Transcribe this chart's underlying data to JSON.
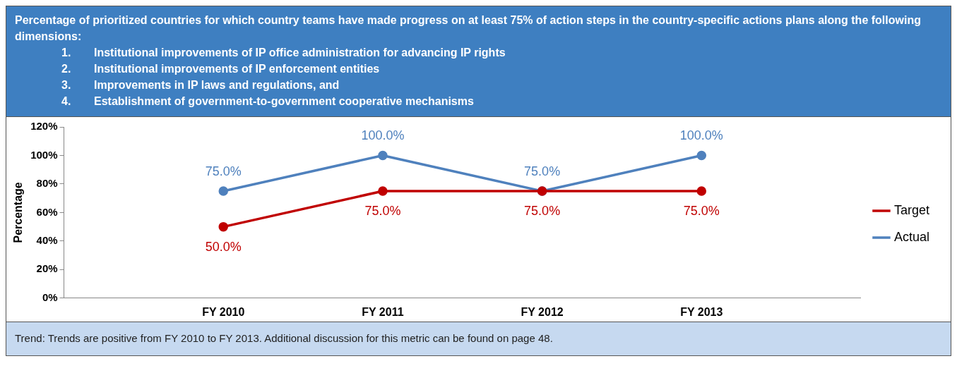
{
  "chart_data": {
    "type": "line",
    "title": "Percentage of prioritized countries for which country teams have made progress on at least 75% of action steps in the country-specific actions plans along the following dimensions:",
    "annotations": [
      "1.\tInstitutional improvements of IP office administration for advancing IP rights",
      "2.\tInstitutional improvements of IP enforcement entities",
      "3.\tImprovements in IP laws and regulations, and",
      "4.\tEstablishment of government-to-government cooperative mechanisms",
      "Trend:  Trends are positive from FY 2010 to FY 2013.  Additional discussion for this metric can be found on page 48."
    ],
    "ylabel": "Percentage",
    "categories": [
      "FY 2010",
      "FY 2011",
      "FY 2012",
      "FY 2013"
    ],
    "series": [
      {
        "name": "Target",
        "color": "#c00000",
        "values": [
          50,
          75,
          75,
          75
        ],
        "value_labels": [
          "50.0%",
          "75.0%",
          "75.0%",
          "75.0%"
        ]
      },
      {
        "name": "Actual",
        "color": "#4f81bd",
        "values": [
          75,
          100,
          75,
          100
        ],
        "value_labels": [
          "75.0%",
          "100.0%",
          "75.0%",
          "100.0%"
        ]
      }
    ],
    "ylim": [
      0,
      120
    ],
    "yticks": [
      {
        "value": 0,
        "label": "0%"
      },
      {
        "value": 20,
        "label": "20%"
      },
      {
        "value": 40,
        "label": "40%"
      },
      {
        "value": 60,
        "label": "60%"
      },
      {
        "value": 80,
        "label": "80%"
      },
      {
        "value": 100,
        "label": "100%"
      },
      {
        "value": 120,
        "label": "120%"
      }
    ],
    "legend": "right",
    "marker": "circle",
    "line_style": "solid",
    "grid": false
  }
}
